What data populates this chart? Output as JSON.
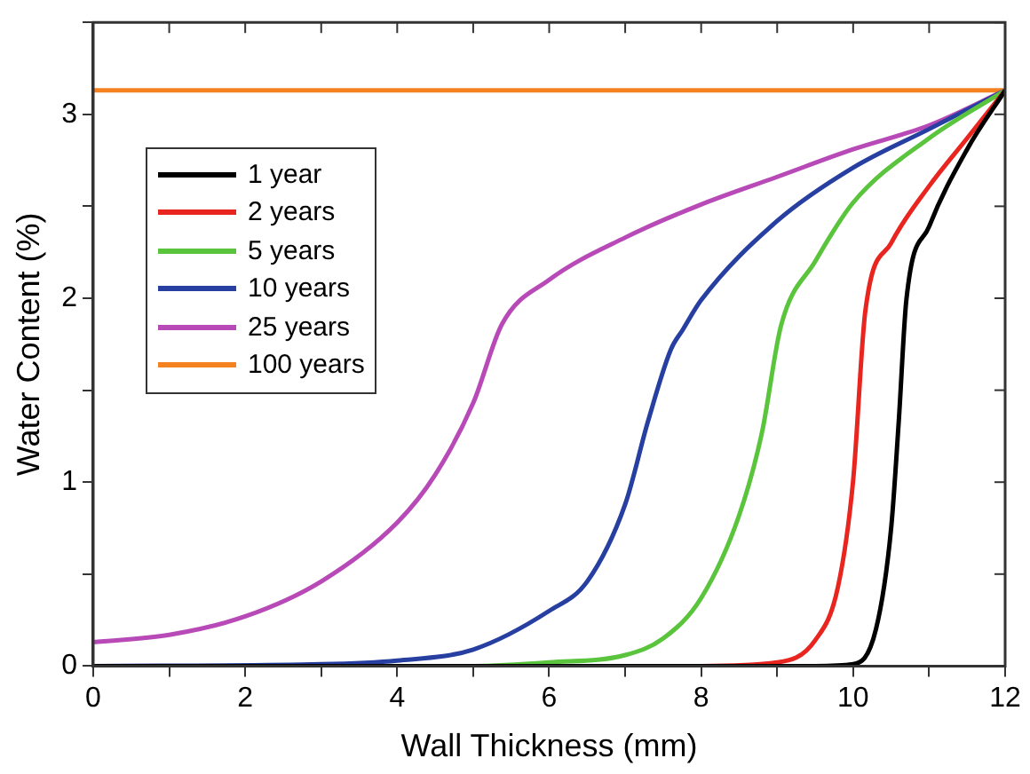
{
  "chart_data": {
    "type": "line",
    "xlabel": "Wall Thickness (mm)",
    "ylabel": "Water Content (%)",
    "xlim": [
      0,
      12
    ],
    "ylim": [
      0,
      3.5
    ],
    "xticks": [
      0,
      {
        "value": 1,
        "label": null
      },
      2,
      {
        "value": 3,
        "label": null
      },
      4,
      {
        "value": 5,
        "label": null
      },
      6,
      {
        "value": 7,
        "label": null
      },
      8,
      {
        "value": 9,
        "label": null
      },
      10,
      {
        "value": 11,
        "label": null
      },
      12
    ],
    "yticks": [
      0,
      {
        "value": 0.5,
        "label": null
      },
      1,
      {
        "value": 1.5,
        "label": null
      },
      2,
      {
        "value": 2.5,
        "label": null
      },
      3,
      {
        "value": 3.5,
        "label": null
      }
    ],
    "grid": false,
    "legend": "top left",
    "marker": "none",
    "line_style": "solid",
    "series": [
      {
        "name": "1 year",
        "color": "#000000",
        "x": [
          0,
          9.5,
          10,
          10.3,
          10.5,
          10.6,
          10.7,
          11,
          11.5,
          12
        ],
        "values": [
          0,
          0,
          0.01,
          0.2,
          0.75,
          1.33,
          1.99,
          2.39,
          2.81,
          3.13
        ]
      },
      {
        "name": "2 years",
        "color": "#e8251f",
        "x": [
          0,
          8,
          9,
          9.5,
          9.8,
          10,
          10.16,
          10.5,
          11,
          11.5,
          12
        ],
        "values": [
          0,
          0,
          0.02,
          0.14,
          0.43,
          1.01,
          1.93,
          2.3,
          2.61,
          2.87,
          3.13
        ]
      },
      {
        "name": "5 years",
        "color": "#5ac43c",
        "x": [
          0,
          5,
          6,
          7,
          7.5,
          8,
          8.5,
          8.8,
          9.05,
          9.5,
          10,
          11,
          12
        ],
        "values": [
          0,
          0,
          0.02,
          0.06,
          0.15,
          0.37,
          0.82,
          1.27,
          1.85,
          2.2,
          2.52,
          2.87,
          3.13
        ]
      },
      {
        "name": "10 years",
        "color": "#263fa0",
        "x": [
          0,
          3,
          4,
          5,
          6,
          6.5,
          7,
          7.3,
          7.6,
          7.76,
          8,
          9,
          10,
          11,
          12
        ],
        "values": [
          0,
          0.01,
          0.03,
          0.09,
          0.3,
          0.46,
          0.88,
          1.33,
          1.72,
          1.83,
          1.99,
          2.42,
          2.71,
          2.92,
          3.13
        ]
      },
      {
        "name": "25 years",
        "color": "#b84ab8",
        "x": [
          0,
          1,
          2,
          3,
          4,
          4.5,
          5,
          5.38,
          6,
          7,
          8,
          9,
          10,
          11,
          12
        ],
        "values": [
          0.13,
          0.17,
          0.27,
          0.46,
          0.78,
          1.04,
          1.43,
          1.86,
          2.1,
          2.33,
          2.51,
          2.66,
          2.81,
          2.94,
          3.13
        ]
      },
      {
        "name": "100 years",
        "color": "#f58220",
        "x": [
          0,
          12
        ],
        "values": [
          3.13,
          3.13
        ]
      }
    ]
  }
}
